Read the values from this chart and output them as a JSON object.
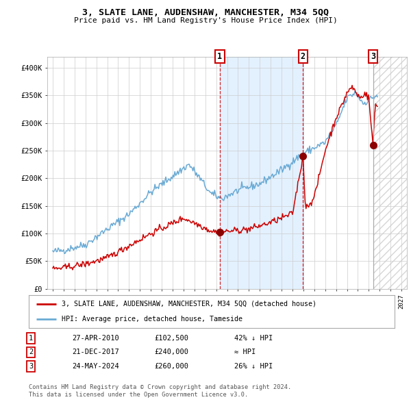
{
  "title": "3, SLATE LANE, AUDENSHAW, MANCHESTER, M34 5QQ",
  "subtitle": "Price paid vs. HM Land Registry's House Price Index (HPI)",
  "legend_line1": "3, SLATE LANE, AUDENSHAW, MANCHESTER, M34 5QQ (detached house)",
  "legend_line2": "HPI: Average price, detached house, Tameside",
  "sale1_date": "27-APR-2010",
  "sale1_price": "£102,500",
  "sale1_hpi": "42% ↓ HPI",
  "sale1_year": 2010.32,
  "sale1_value": 102500,
  "sale2_date": "21-DEC-2017",
  "sale2_price": "£240,000",
  "sale2_hpi": "≈ HPI",
  "sale2_year": 2017.97,
  "sale2_value": 240000,
  "sale3_date": "24-MAY-2024",
  "sale3_price": "£260,000",
  "sale3_hpi": "26% ↓ HPI",
  "sale3_year": 2024.39,
  "sale3_value": 260000,
  "hpi_color": "#6aaad4",
  "price_color": "#cc0000",
  "marker_color": "#8b0000",
  "background_color": "#ffffff",
  "grid_color": "#cccccc",
  "shade_color": "#ddeeff",
  "hatch_color": "#bbbbbb",
  "footnote_line1": "Contains HM Land Registry data © Crown copyright and database right 2024.",
  "footnote_line2": "This data is licensed under the Open Government Licence v3.0.",
  "ylim_max": 420000,
  "xlim_min": 1994.5,
  "xlim_max": 2027.5
}
